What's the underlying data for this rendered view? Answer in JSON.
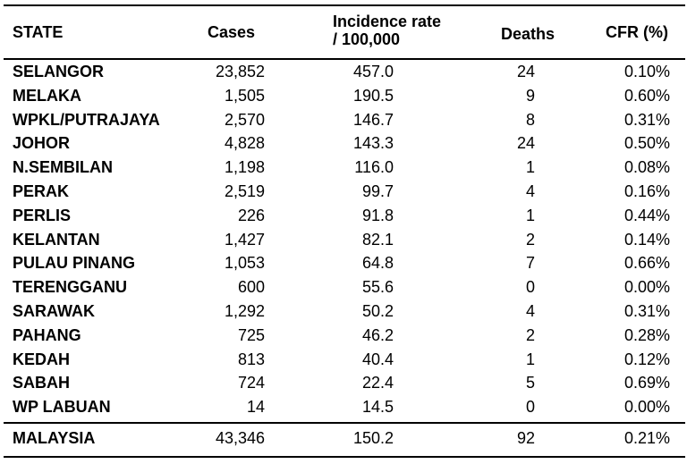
{
  "headers": {
    "state": "STATE",
    "cases": "Cases",
    "incidence_line1": "Incidence rate",
    "incidence_line2": "/ 100,000",
    "deaths": "Deaths",
    "cfr": "CFR (%)"
  },
  "rows": [
    {
      "state": "SELANGOR",
      "cases": "23,852",
      "incidence": "457.0",
      "deaths": "24",
      "cfr": "0.10%"
    },
    {
      "state": "MELAKA",
      "cases": "1,505",
      "incidence": "190.5",
      "deaths": "9",
      "cfr": "0.60%"
    },
    {
      "state": "WPKL/PUTRAJAYA",
      "cases": "2,570",
      "incidence": "146.7",
      "deaths": "8",
      "cfr": "0.31%"
    },
    {
      "state": "JOHOR",
      "cases": "4,828",
      "incidence": "143.3",
      "deaths": "24",
      "cfr": "0.50%"
    },
    {
      "state": "N.SEMBILAN",
      "cases": "1,198",
      "incidence": "116.0",
      "deaths": "1",
      "cfr": "0.08%"
    },
    {
      "state": "PERAK",
      "cases": "2,519",
      "incidence": "99.7",
      "deaths": "4",
      "cfr": "0.16%"
    },
    {
      "state": "PERLIS",
      "cases": "226",
      "incidence": "91.8",
      "deaths": "1",
      "cfr": "0.44%"
    },
    {
      "state": "KELANTAN",
      "cases": "1,427",
      "incidence": "82.1",
      "deaths": "2",
      "cfr": "0.14%"
    },
    {
      "state": "PULAU PINANG",
      "cases": "1,053",
      "incidence": "64.8",
      "deaths": "7",
      "cfr": "0.66%"
    },
    {
      "state": "TERENGGANU",
      "cases": "600",
      "incidence": "55.6",
      "deaths": "0",
      "cfr": "0.00%"
    },
    {
      "state": "SARAWAK",
      "cases": "1,292",
      "incidence": "50.2",
      "deaths": "4",
      "cfr": "0.31%"
    },
    {
      "state": "PAHANG",
      "cases": "725",
      "incidence": "46.2",
      "deaths": "2",
      "cfr": "0.28%"
    },
    {
      "state": "KEDAH",
      "cases": "813",
      "incidence": "40.4",
      "deaths": "1",
      "cfr": "0.12%"
    },
    {
      "state": "SABAH",
      "cases": "724",
      "incidence": "22.4",
      "deaths": "5",
      "cfr": "0.69%"
    },
    {
      "state": "WP LABUAN",
      "cases": "14",
      "incidence": "14.5",
      "deaths": "0",
      "cfr": "0.00%"
    }
  ],
  "total": {
    "state": "MALAYSIA",
    "cases": "43,346",
    "incidence": "150.2",
    "deaths": "92",
    "cfr": "0.21%"
  }
}
